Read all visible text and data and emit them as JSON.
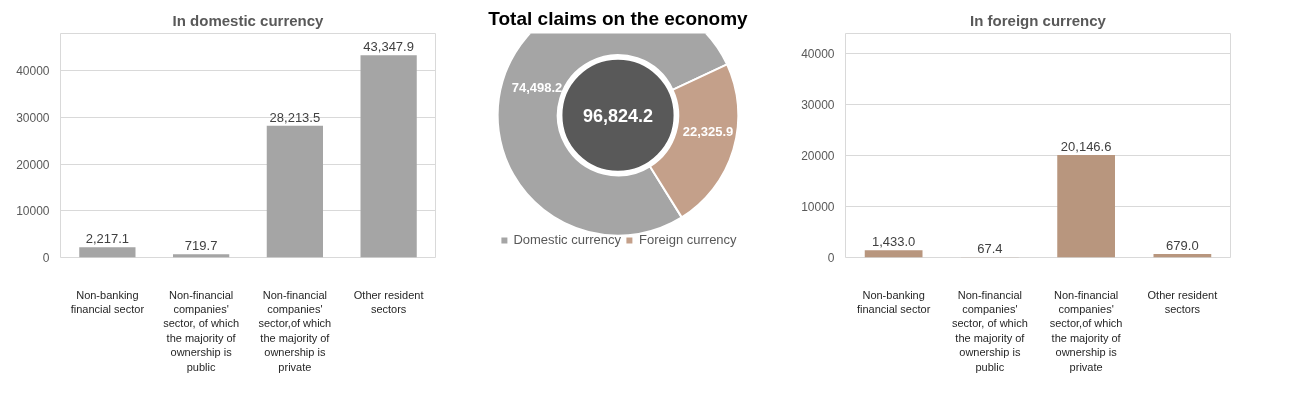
{
  "chart_data": [
    {
      "type": "bar",
      "title": "In domestic currency",
      "categories": [
        "Non-banking financial sector",
        "Non-financial companies' sector, of which the majority of ownership is public",
        "Non-financial companies' sector,of which the majority of ownership is private",
        "Other resident sectors"
      ],
      "values": [
        2217.1,
        719.7,
        28213.5,
        43347.9
      ],
      "value_labels": [
        "2,217.1",
        "719.7",
        "28,213.5",
        "43,347.9"
      ],
      "color": "#a5a5a5",
      "ylim": [
        0,
        48000
      ],
      "yticks": [
        0,
        10000,
        20000,
        30000,
        40000
      ],
      "grid": "y"
    },
    {
      "type": "donut",
      "title": "Total claims on the economy",
      "categories": [
        "Domestic currency",
        "Foreign currency"
      ],
      "values": [
        74498.2,
        22325.9
      ],
      "value_labels": [
        "74,498.2",
        "22,325.9"
      ],
      "colors": [
        "#a5a5a5",
        "#c4a08a"
      ],
      "annotations": [
        "96,824.2"
      ],
      "legend": "bottom"
    },
    {
      "type": "bar",
      "title": "In foreign currency",
      "categories": [
        "Non-banking financial sector",
        "Non-financial companies' sector, of which the majority of ownership is public",
        "Non-financial companies' sector,of which the majority of ownership is private",
        "Other resident sectors"
      ],
      "values": [
        1433.0,
        67.4,
        20146.6,
        679.0
      ],
      "value_labels": [
        "1,433.0",
        "67.4",
        "20,146.6",
        "679.0"
      ],
      "color": "#b8967e",
      "ylim": [
        0,
        44000
      ],
      "yticks": [
        0,
        10000,
        20000,
        30000,
        40000
      ],
      "grid": "y"
    }
  ]
}
